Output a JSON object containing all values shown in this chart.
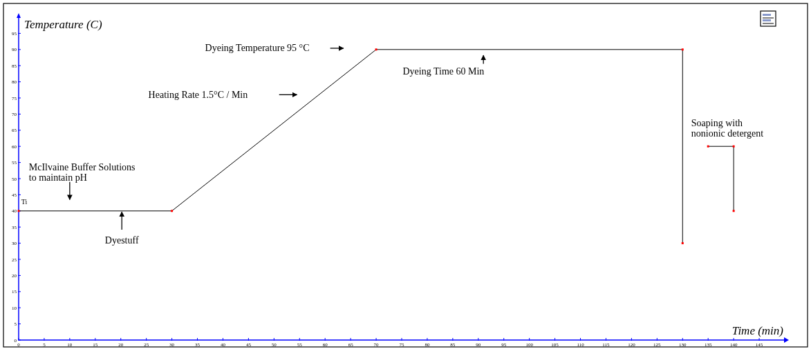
{
  "chart_data": {
    "type": "line",
    "xlabel": "Time (min)",
    "ylabel": "Temperature (C)",
    "xlim": [
      0,
      150
    ],
    "ylim": [
      0,
      100
    ],
    "xticks": [
      0,
      5,
      10,
      15,
      20,
      25,
      30,
      35,
      40,
      45,
      50,
      55,
      60,
      65,
      70,
      75,
      80,
      85,
      90,
      95,
      100,
      105,
      110,
      115,
      120,
      125,
      130,
      135,
      140,
      145
    ],
    "yticks": [
      0,
      5,
      10,
      15,
      20,
      25,
      30,
      35,
      40,
      45,
      50,
      55,
      60,
      65,
      70,
      75,
      80,
      85,
      90,
      95
    ],
    "series": [
      {
        "color": "#000000",
        "x": [
          0,
          30,
          70,
          130,
          130
        ],
        "values": [
          40,
          40,
          90,
          90,
          30
        ]
      },
      {
        "color": "#000000",
        "x": [
          135,
          140,
          140
        ],
        "values": [
          60,
          60,
          40
        ]
      }
    ],
    "marker": "square",
    "grid": false,
    "annotations": [
      "Ti",
      "McIlvaine Buffer Solutions\nto maintain pH",
      "Dyestuff",
      "Heating Rate 1.5°C / Min",
      "Dyeing Temperature 95 °C",
      "Dyeing Time 60 Min",
      "Soaping with\nnonionic detergent"
    ]
  }
}
